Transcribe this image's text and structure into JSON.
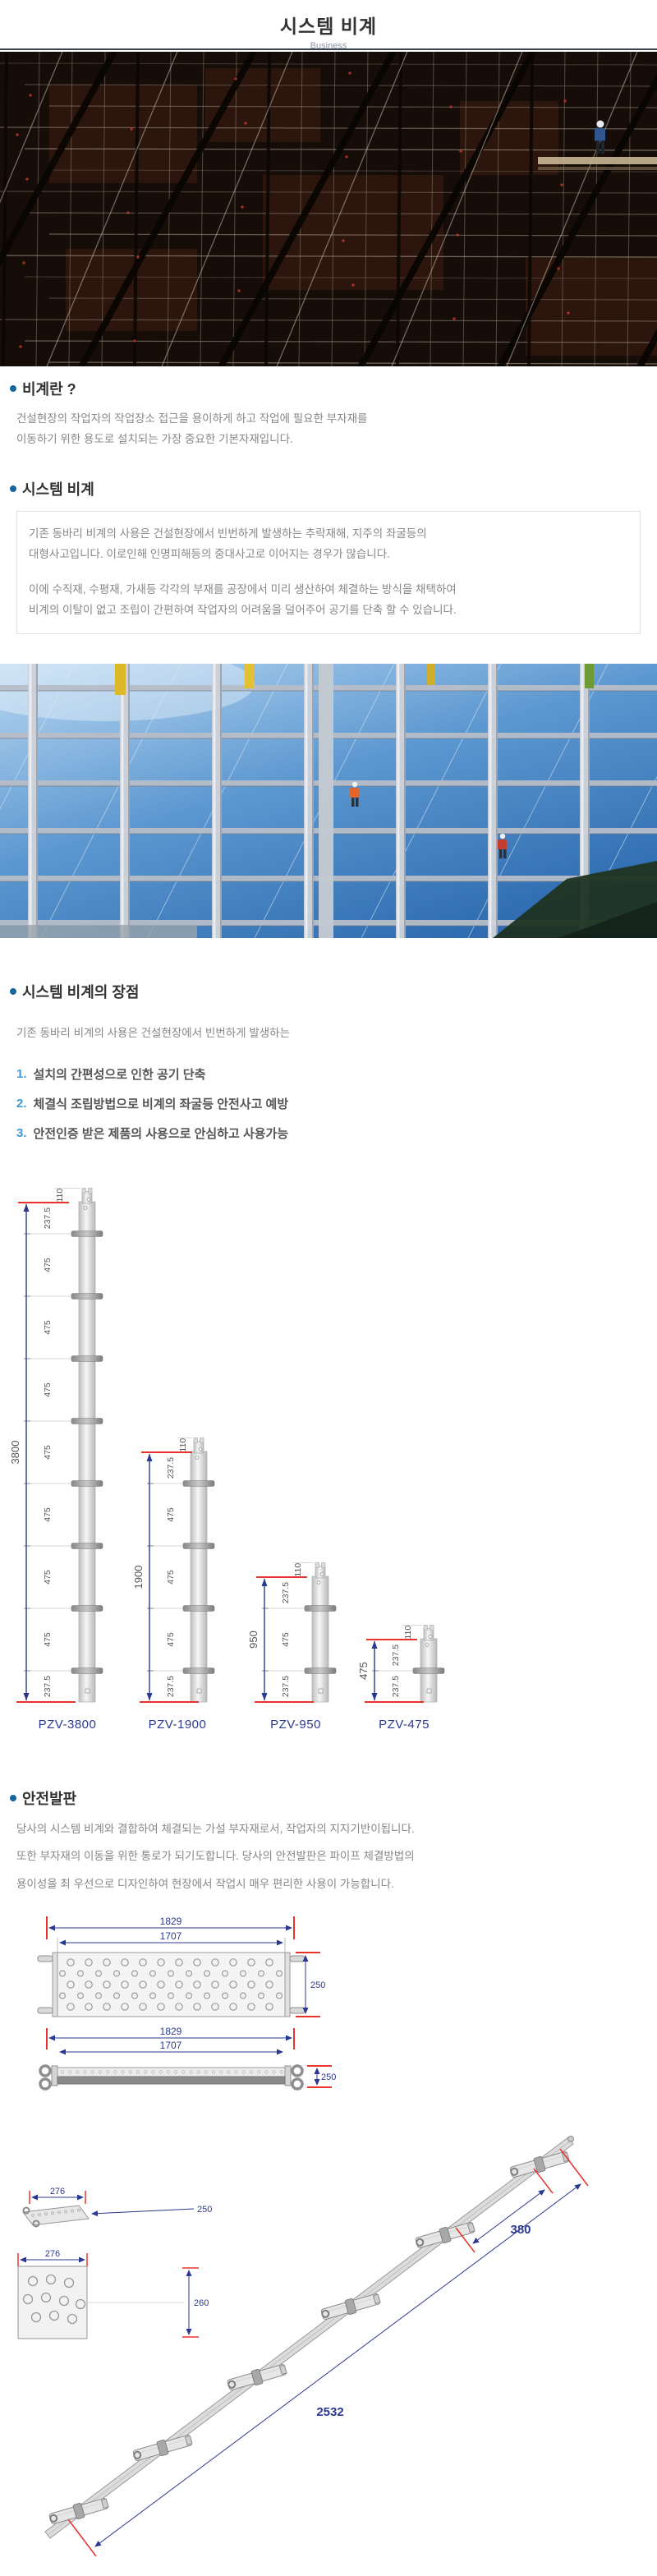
{
  "page": {
    "title": "시스템 비계",
    "subtitle": "Business"
  },
  "colors": {
    "accent_blue": "#15679f",
    "list_number_blue": "#3f9bd8",
    "dimension_navy": "#2b3990",
    "dimension_red": "#e8332a"
  },
  "sections": {
    "what": {
      "title": "비계란 ?",
      "body_line1": "건설현장의 작업자의 작업장소 접근을 용이하게 하고 작업에 필요한 부자재를",
      "body_line2": "이동하기 위한 용도로 설치되는 가장 중요한 기본자재입니다."
    },
    "system": {
      "title": "시스템 비계",
      "para1_line1": "기존 동바리 비계의 사용은 건설현장에서 빈번하게 발생하는 추락재해, 지주의 좌굴등의",
      "para1_line2": "대형사고입니다. 이로인해 인명피해등의 중대사고로 이어지는 경우가 많습니다.",
      "para2_line1": "이에 수직재, 수평재, 가새등 각각의 부재를 공장에서 미리 생산하여 체결하는 방식을 채택하여",
      "para2_line2": "비계의 이탈이 없고 조립이 간편하여 작업자의 어려움을 덜어주어 공기를 단축 할 수 있습니다."
    },
    "advantages": {
      "title": "시스템 비계의 장점",
      "intro": "기존 동바리 비계의 사용은 건설현장에서 빈번하게 발생하는",
      "items": [
        {
          "num": "1.",
          "text": "설치의 간편성으로 인한 공기 단축"
        },
        {
          "num": "2.",
          "text": "체결식 조립방법으로 비계의 좌굴등 안전사고 예방"
        },
        {
          "num": "3.",
          "text": "안전인증 받은 제품의 사용으로 안심하고 사용가능"
        }
      ]
    },
    "platform": {
      "title": "안전발판",
      "body_line1": "당사의 시스템 비계와 결합하여 체결되는 가설 부자재로서, 작업자의 지지기반이됩니다.",
      "body_line2": "또한 부자재의 이동을 위한 통로가 되기도합니다. 당사의 안전발판은 파이프 체결방법의",
      "body_line3": "용이성을 최 우선으로 디자인하여 현장에서 작업시 매우 편리한 사용이 가능합니다."
    }
  },
  "pipes_diagram": {
    "models": [
      {
        "label": "PZV-3800",
        "total": "3800",
        "top_segment": "110",
        "segments": [
          "237.5",
          "475",
          "475",
          "475",
          "475",
          "475",
          "475",
          "475",
          "237.5"
        ]
      },
      {
        "label": "PZV-1900",
        "total": "1900",
        "top_segment": "110",
        "segments": [
          "237.5",
          "475",
          "475",
          "475",
          "237.5"
        ]
      },
      {
        "label": "PZV-950",
        "total": "950",
        "top_segment": "110",
        "segments": [
          "237.5",
          "475",
          "237.5"
        ]
      },
      {
        "label": "PZV-475",
        "total": "475",
        "top_segment": "110",
        "segments": [
          "237.5",
          "237.5"
        ]
      }
    ]
  },
  "platform_diagram": {
    "top_view": {
      "dim_outer": "1829",
      "dim_inner": "1707",
      "dim_width": "250"
    },
    "side_view": {
      "dim_outer": "1829",
      "dim_inner": "1707",
      "dim_height": "250"
    },
    "plank_detail": {
      "dim_width": "276",
      "dim_depth": "250"
    },
    "panel_detail": {
      "dim_width": "276",
      "dim_height": "260"
    },
    "assembly": {
      "dim_step": "380",
      "dim_total": "2532"
    }
  }
}
